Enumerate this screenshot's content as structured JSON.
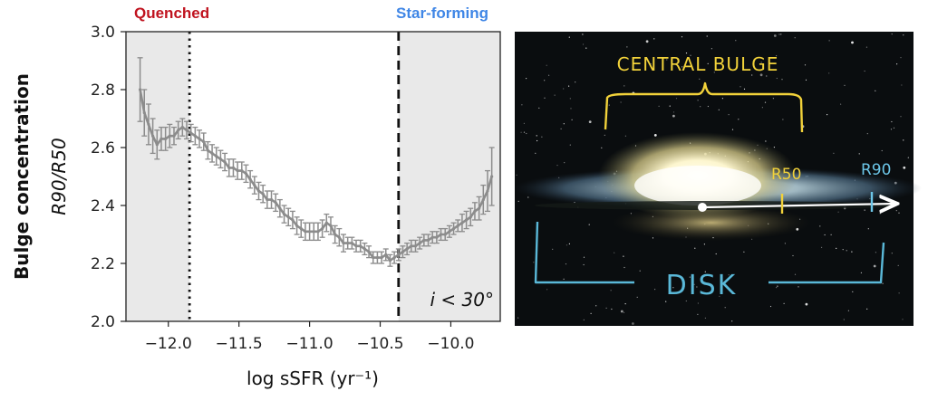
{
  "chart_data": {
    "type": "line",
    "header_left": "Quenched",
    "header_right": "Star-forming",
    "header_left_color": "#c0131f",
    "header_right_color": "#3f86e6",
    "ylabel_outer": "Bulge concentration",
    "ylabel_inner": "R90/R50",
    "xlabel": "log sSFR (yr⁻¹)",
    "annotation": "i < 30°",
    "xlim": [
      -12.3,
      -9.65
    ],
    "ylim": [
      2.0,
      3.0
    ],
    "xticks": [
      -12.0,
      -11.5,
      -11.0,
      -10.5,
      -10.0
    ],
    "xtick_labels": [
      "−12.0",
      "−11.5",
      "−11.0",
      "−10.5",
      "−10.0"
    ],
    "yticks": [
      2.0,
      2.2,
      2.4,
      2.6,
      2.8,
      3.0
    ],
    "ytick_labels": [
      "2.0",
      "2.2",
      "2.4",
      "2.6",
      "2.8",
      "3.0"
    ],
    "shaded_regions": [
      [
        -12.3,
        -11.85
      ],
      [
        -10.37,
        -9.65
      ]
    ],
    "vlines": [
      {
        "x": -11.85,
        "style": "dotted"
      },
      {
        "x": -10.37,
        "style": "dashed"
      }
    ],
    "series": [
      {
        "color": "#8c8c8c",
        "x": [
          -12.2,
          -12.17,
          -12.14,
          -12.11,
          -12.08,
          -12.05,
          -12.02,
          -11.99,
          -11.96,
          -11.93,
          -11.9,
          -11.87,
          -11.84,
          -11.81,
          -11.78,
          -11.75,
          -11.72,
          -11.69,
          -11.66,
          -11.63,
          -11.6,
          -11.57,
          -11.54,
          -11.51,
          -11.48,
          -11.45,
          -11.42,
          -11.39,
          -11.36,
          -11.33,
          -11.3,
          -11.27,
          -11.24,
          -11.21,
          -11.18,
          -11.15,
          -11.12,
          -11.09,
          -11.06,
          -11.03,
          -11.0,
          -10.97,
          -10.94,
          -10.91,
          -10.88,
          -10.85,
          -10.82,
          -10.79,
          -10.76,
          -10.73,
          -10.7,
          -10.67,
          -10.64,
          -10.61,
          -10.58,
          -10.55,
          -10.52,
          -10.49,
          -10.46,
          -10.43,
          -10.4,
          -10.37,
          -10.34,
          -10.31,
          -10.28,
          -10.25,
          -10.22,
          -10.19,
          -10.16,
          -10.13,
          -10.1,
          -10.07,
          -10.04,
          -10.01,
          -9.98,
          -9.95,
          -9.92,
          -9.89,
          -9.86,
          -9.83,
          -9.8,
          -9.77,
          -9.74,
          -9.71
        ],
        "y": [
          2.8,
          2.72,
          2.68,
          2.64,
          2.61,
          2.63,
          2.63,
          2.64,
          2.64,
          2.66,
          2.67,
          2.66,
          2.65,
          2.64,
          2.63,
          2.62,
          2.59,
          2.58,
          2.57,
          2.56,
          2.55,
          2.53,
          2.53,
          2.52,
          2.52,
          2.51,
          2.49,
          2.47,
          2.45,
          2.44,
          2.42,
          2.42,
          2.41,
          2.39,
          2.37,
          2.36,
          2.35,
          2.33,
          2.32,
          2.31,
          2.31,
          2.31,
          2.31,
          2.32,
          2.34,
          2.33,
          2.3,
          2.29,
          2.27,
          2.27,
          2.27,
          2.26,
          2.26,
          2.25,
          2.24,
          2.22,
          2.22,
          2.22,
          2.23,
          2.21,
          2.22,
          2.23,
          2.24,
          2.25,
          2.26,
          2.26,
          2.27,
          2.28,
          2.28,
          2.29,
          2.29,
          2.3,
          2.3,
          2.31,
          2.32,
          2.33,
          2.34,
          2.35,
          2.36,
          2.38,
          2.39,
          2.42,
          2.45,
          2.5
        ],
        "err": [
          0.11,
          0.08,
          0.07,
          0.06,
          0.05,
          0.04,
          0.04,
          0.04,
          0.03,
          0.03,
          0.03,
          0.03,
          0.03,
          0.03,
          0.03,
          0.03,
          0.03,
          0.03,
          0.03,
          0.03,
          0.03,
          0.03,
          0.03,
          0.03,
          0.03,
          0.03,
          0.03,
          0.03,
          0.03,
          0.03,
          0.03,
          0.03,
          0.03,
          0.03,
          0.03,
          0.03,
          0.03,
          0.03,
          0.03,
          0.03,
          0.03,
          0.03,
          0.03,
          0.03,
          0.03,
          0.03,
          0.03,
          0.03,
          0.03,
          0.02,
          0.02,
          0.02,
          0.02,
          0.02,
          0.02,
          0.02,
          0.02,
          0.02,
          0.02,
          0.02,
          0.02,
          0.02,
          0.02,
          0.02,
          0.02,
          0.02,
          0.02,
          0.02,
          0.02,
          0.02,
          0.02,
          0.02,
          0.02,
          0.02,
          0.02,
          0.02,
          0.03,
          0.03,
          0.03,
          0.03,
          0.04,
          0.05,
          0.07,
          0.1
        ]
      }
    ]
  },
  "galaxy_panel": {
    "bulge_label": "CENTRAL BULGE",
    "disk_label": "DISK",
    "r50_label": "R50",
    "r90_label": "R90",
    "bulge_color": "#f2d23a",
    "disk_color": "#5ab8d8",
    "r50_color": "#f2d23a",
    "r90_color": "#6cc6e8"
  }
}
